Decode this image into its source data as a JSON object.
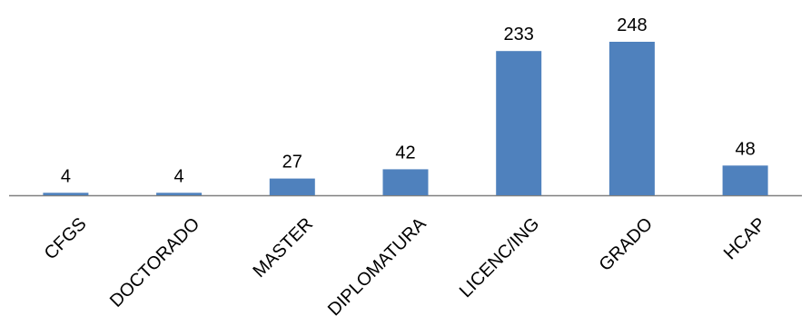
{
  "chart_data": {
    "type": "bar",
    "categories": [
      "CFGS",
      "DOCTORADO",
      "MASTER",
      "DIPLOMATURA",
      "LICENC/ING",
      "GRADO",
      "HCAP"
    ],
    "values": [
      4,
      4,
      27,
      42,
      233,
      248,
      48
    ],
    "title": "",
    "xlabel": "",
    "ylabel": "",
    "ylim": [
      0,
      248
    ],
    "grid": false,
    "legend": "none",
    "data_labels": true,
    "bar_color": "#4F81BD",
    "axis_color": "#808080"
  }
}
